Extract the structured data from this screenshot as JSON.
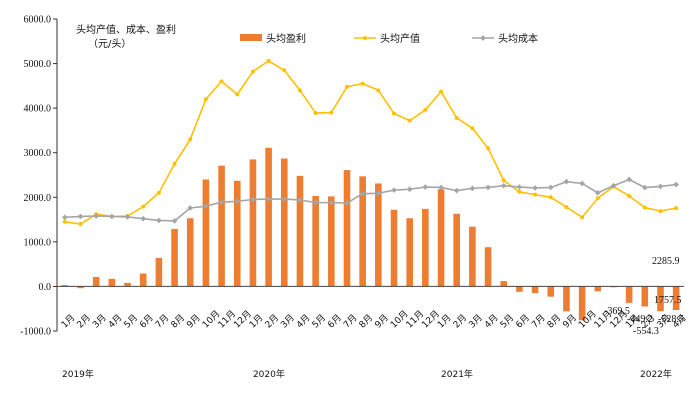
{
  "chart_data": {
    "type": "bar+line",
    "ylabel_lines": [
      "头均产值、成本、盈利",
      "（元/头）"
    ],
    "ylim": [
      -1000,
      6000
    ],
    "yticks": [
      "6000.0",
      "5000.0",
      "4000.0",
      "3000.0",
      "2000.0",
      "1000.0",
      "0.0",
      "-1000.0"
    ],
    "ytick_values": [
      6000,
      5000,
      4000,
      3000,
      2000,
      1000,
      0,
      -1000
    ],
    "categories": [
      "1月",
      "2月",
      "3月",
      "4月",
      "5月",
      "6月",
      "7月",
      "8月",
      "9月",
      "10月",
      "11月",
      "12月",
      "1月",
      "2月",
      "3月",
      "4月",
      "5月",
      "6月",
      "7月",
      "8月",
      "9月",
      "10月",
      "11月",
      "12月",
      "1月",
      "2月",
      "3月",
      "4月",
      "5月",
      "6月",
      "7月",
      "8月",
      "9月",
      "10月",
      "11月",
      "12月",
      "1月",
      "2月",
      "3月",
      "4月"
    ],
    "year_labels": [
      {
        "label": "2019年",
        "index": 0
      },
      {
        "label": "2020年",
        "index": 12
      },
      {
        "label": "2021年",
        "index": 24
      },
      {
        "label": "2022年",
        "index": 36
      }
    ],
    "series": [
      {
        "name": "头均盈利",
        "kind": "bar",
        "color": "#ED7D31",
        "values": [
          30,
          -40,
          210,
          170,
          80,
          290,
          640,
          1290,
          1530,
          2400,
          2710,
          2370,
          2850,
          3110,
          2870,
          2480,
          2030,
          2020,
          2610,
          2470,
          2310,
          1720,
          1530,
          1740,
          2180,
          1630,
          1340,
          880,
          120,
          -120,
          -150,
          -230,
          -560,
          -760,
          -110,
          -20,
          -369.5,
          -449.2,
          -554.3,
          -528.5
        ]
      },
      {
        "name": "头均产值",
        "kind": "line",
        "color": "#FFC000",
        "values": [
          1450,
          1400,
          1620,
          1570,
          1580,
          1790,
          2100,
          2750,
          3300,
          4200,
          4600,
          4310,
          4820,
          5060,
          4850,
          4400,
          3890,
          3900,
          4480,
          4550,
          4400,
          3880,
          3720,
          3960,
          4370,
          3780,
          3550,
          3100,
          2380,
          2120,
          2060,
          2000,
          1780,
          1550,
          1980,
          2240,
          2030,
          1770,
          1690,
          1757.5
        ]
      },
      {
        "name": "头均成本",
        "kind": "line",
        "color": "#A5A5A5",
        "values": [
          1550,
          1570,
          1580,
          1570,
          1560,
          1520,
          1480,
          1470,
          1760,
          1800,
          1890,
          1910,
          1950,
          1960,
          1960,
          1940,
          1880,
          1880,
          1870,
          2080,
          2090,
          2160,
          2180,
          2230,
          2220,
          2150,
          2200,
          2220,
          2260,
          2230,
          2210,
          2220,
          2350,
          2310,
          2100,
          2260,
          2399.3,
          2219.0,
          2244.3,
          2285.9
        ]
      }
    ],
    "annotations": [
      {
        "text": "2285.9",
        "series": "头均成本",
        "index": 39
      },
      {
        "text": "1757.5",
        "series": "头均产值",
        "index": 39
      },
      {
        "text": "-369.5",
        "series": "头均盈利",
        "index": 36
      },
      {
        "text": "-449.2",
        "series": "头均盈利",
        "index": 37
      },
      {
        "text": "-554.3",
        "series": "头均盈利",
        "index": 38
      },
      {
        "text": "-528.5",
        "series": "头均盈利",
        "index": 39
      }
    ],
    "legend_position": "top",
    "grid": false
  }
}
